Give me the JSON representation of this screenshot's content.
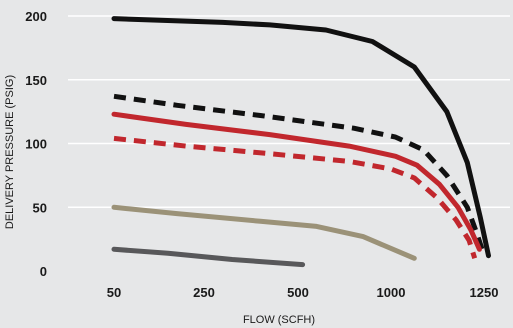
{
  "chart_data": {
    "type": "line",
    "title": "",
    "xlabel": "FLOW (SCFH)",
    "ylabel": "DELIVERY PRESSURE (PSIG)",
    "x_ticks": [
      "50",
      "250",
      "500",
      "1000",
      "1250"
    ],
    "y_ticks": [
      0,
      50,
      100,
      150,
      200
    ],
    "ylim": [
      0,
      200
    ],
    "grid": true,
    "series": [
      {
        "color": "#111111",
        "dash": false,
        "points": [
          [
            0,
            198
          ],
          [
            0.35,
            197
          ],
          [
            1.2,
            195
          ],
          [
            1.7,
            193
          ],
          [
            2.3,
            189
          ],
          [
            2.8,
            180
          ],
          [
            3.25,
            160
          ],
          [
            3.6,
            125
          ],
          [
            3.82,
            85
          ],
          [
            3.96,
            42
          ],
          [
            4.05,
            12
          ]
        ]
      },
      {
        "color": "#111111",
        "dash": true,
        "points": [
          [
            0,
            137
          ],
          [
            0.7,
            130
          ],
          [
            1.6,
            122
          ],
          [
            2.6,
            112
          ],
          [
            3.05,
            105
          ],
          [
            3.35,
            95
          ],
          [
            3.6,
            75
          ],
          [
            3.82,
            50
          ],
          [
            3.92,
            30
          ],
          [
            3.98,
            17
          ]
        ]
      },
      {
        "color": "#c1272d",
        "dash": false,
        "points": [
          [
            0,
            123
          ],
          [
            0.8,
            115
          ],
          [
            1.7,
            107
          ],
          [
            2.55,
            98
          ],
          [
            3.05,
            90
          ],
          [
            3.28,
            83
          ],
          [
            3.52,
            68
          ],
          [
            3.72,
            50
          ],
          [
            3.86,
            32
          ],
          [
            3.95,
            17
          ]
        ]
      },
      {
        "color": "#c1272d",
        "dash": true,
        "points": [
          [
            0,
            104
          ],
          [
            0.8,
            98
          ],
          [
            1.7,
            92
          ],
          [
            2.55,
            86
          ],
          [
            3.0,
            80
          ],
          [
            3.25,
            73
          ],
          [
            3.5,
            57
          ],
          [
            3.7,
            40
          ],
          [
            3.84,
            24
          ],
          [
            3.9,
            10
          ]
        ]
      },
      {
        "color": "#9b9278",
        "dash": false,
        "points": [
          [
            0,
            50
          ],
          [
            0.7,
            45
          ],
          [
            1.6,
            39
          ],
          [
            2.2,
            35
          ],
          [
            2.7,
            27
          ],
          [
            3.25,
            10
          ]
        ]
      },
      {
        "color": "#58585a",
        "dash": false,
        "points": [
          [
            0,
            17
          ],
          [
            0.6,
            14
          ],
          [
            1.3,
            9
          ],
          [
            2.05,
            5
          ]
        ]
      }
    ]
  }
}
